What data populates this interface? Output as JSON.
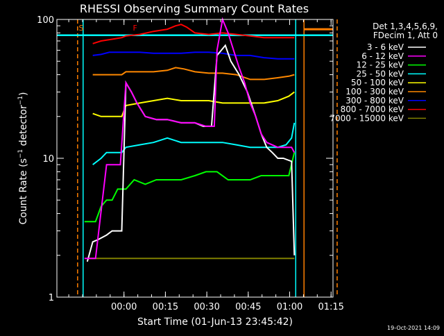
{
  "chart_data": {
    "type": "line",
    "title": "RHESSI Observing Summary Count Rates",
    "xlabel": "Start Time (01-Jun-13 23:45:42)",
    "ylabel": "Count Rate (s⁻¹ detector⁻¹)",
    "ylabel_main": "Count Rate (s",
    "ylabel_sup1": "−1",
    "ylabel_mid": " detector",
    "ylabel_sup2": "−1",
    "ylabel_end": ")",
    "y_scale": "log",
    "ylim": [
      1,
      100
    ],
    "xlim_minutes": [
      -10,
      90
    ],
    "x_ticks": [
      {
        "m": 14.3,
        "label": "00:00"
      },
      {
        "m": 29.3,
        "label": "00:15"
      },
      {
        "m": 44.3,
        "label": "00:30"
      },
      {
        "m": 59.3,
        "label": "00:45"
      },
      {
        "m": 74.3,
        "label": "01:00"
      },
      {
        "m": 89.3,
        "label": "01:15"
      }
    ],
    "y_ticks": [
      {
        "v": 1,
        "label": "1"
      },
      {
        "v": 10,
        "label": "10"
      },
      {
        "v": 100,
        "label": "100"
      }
    ],
    "legend_header": [
      "Det 1,3,4,5,6,9,",
      "FDecim 1, Att 0"
    ],
    "legend_placement": "top-right",
    "footer": "19-Oct-2021 14:09",
    "markers": [
      {
        "label": "S",
        "m": -1.2,
        "color": "#ff7f00"
      },
      {
        "label": "F",
        "m": 18.3,
        "color": "#ff0000"
      }
    ],
    "orange_dashed_lines_minutes": [
      -2.5,
      91.5
    ],
    "cyan_vertical_lines_minutes": [
      -0.5,
      76.5
    ],
    "orange_vertical_line_minutes": 79.5,
    "cyan_horizontal_level": 77,
    "orange_horizontal_level": 85,
    "series": [
      {
        "name": "3 - 6 keV",
        "color": "#ffffff",
        "points": [
          [
            1,
            1.8
          ],
          [
            3,
            2.5
          ],
          [
            5,
            2.6
          ],
          [
            8,
            2.8
          ],
          [
            10,
            3.0
          ],
          [
            12,
            3.0
          ],
          [
            13.5,
            3.0
          ],
          [
            15,
            35
          ],
          [
            17,
            30
          ],
          [
            19,
            25
          ],
          [
            22,
            20
          ],
          [
            26,
            19
          ],
          [
            30,
            19
          ],
          [
            35,
            18
          ],
          [
            40,
            18
          ],
          [
            43,
            17
          ],
          [
            46,
            17
          ],
          [
            48,
            55
          ],
          [
            51,
            65
          ],
          [
            53,
            50
          ],
          [
            56,
            40
          ],
          [
            59,
            30
          ],
          [
            62,
            20
          ],
          [
            64,
            15
          ],
          [
            66,
            12
          ],
          [
            68,
            11
          ],
          [
            70,
            10
          ],
          [
            72,
            10
          ],
          [
            75,
            9.5
          ],
          [
            76,
            2
          ]
        ]
      },
      {
        "name": "6 - 12 keV",
        "color": "#ff00ff",
        "points": [
          [
            0,
            1.9
          ],
          [
            4,
            1.9
          ],
          [
            8,
            9
          ],
          [
            12,
            9
          ],
          [
            13,
            9
          ],
          [
            15,
            35
          ],
          [
            17,
            30
          ],
          [
            19,
            25
          ],
          [
            22,
            20
          ],
          [
            26,
            19
          ],
          [
            30,
            19
          ],
          [
            35,
            18
          ],
          [
            40,
            18
          ],
          [
            44,
            17
          ],
          [
            47,
            17
          ],
          [
            48,
            60
          ],
          [
            50,
            100
          ],
          [
            52,
            80
          ],
          [
            54,
            60
          ],
          [
            56,
            45
          ],
          [
            58,
            35
          ],
          [
            60,
            25
          ],
          [
            62,
            20
          ],
          [
            64,
            15
          ],
          [
            66,
            13
          ],
          [
            70,
            12
          ],
          [
            73,
            12
          ],
          [
            75,
            12
          ],
          [
            76,
            11
          ]
        ]
      },
      {
        "name": "12 - 25 keV",
        "color": "#00ff00",
        "points": [
          [
            0,
            3.5
          ],
          [
            4,
            3.5
          ],
          [
            6,
            4.5
          ],
          [
            8,
            5
          ],
          [
            10,
            5
          ],
          [
            12,
            6
          ],
          [
            13.5,
            6
          ],
          [
            15,
            6
          ],
          [
            18,
            7
          ],
          [
            22,
            6.5
          ],
          [
            26,
            7
          ],
          [
            30,
            7
          ],
          [
            35,
            7
          ],
          [
            40,
            7.5
          ],
          [
            44,
            8
          ],
          [
            48,
            8
          ],
          [
            52,
            7
          ],
          [
            56,
            7
          ],
          [
            60,
            7
          ],
          [
            64,
            7.5
          ],
          [
            68,
            7.5
          ],
          [
            72,
            7.5
          ],
          [
            74,
            7.5
          ],
          [
            76,
            11
          ]
        ]
      },
      {
        "name": "25 - 50 keV",
        "color": "#00ffff",
        "points": [
          [
            3,
            9
          ],
          [
            6,
            10
          ],
          [
            8,
            11
          ],
          [
            10,
            11
          ],
          [
            12,
            11
          ],
          [
            13.5,
            11
          ],
          [
            15,
            12
          ],
          [
            20,
            12.5
          ],
          [
            25,
            13
          ],
          [
            30,
            14
          ],
          [
            35,
            13
          ],
          [
            40,
            13
          ],
          [
            45,
            13
          ],
          [
            50,
            13
          ],
          [
            55,
            12.5
          ],
          [
            60,
            12
          ],
          [
            65,
            12
          ],
          [
            70,
            12
          ],
          [
            73,
            12.5
          ],
          [
            75,
            14
          ],
          [
            76,
            18
          ]
        ]
      },
      {
        "name": "50 - 100 keV",
        "color": "#ffff00",
        "points": [
          [
            3,
            21
          ],
          [
            6,
            20
          ],
          [
            9,
            20
          ],
          [
            12,
            20
          ],
          [
            13.5,
            20
          ],
          [
            15,
            24
          ],
          [
            20,
            25
          ],
          [
            25,
            26
          ],
          [
            30,
            27
          ],
          [
            35,
            26
          ],
          [
            40,
            26
          ],
          [
            45,
            26
          ],
          [
            50,
            25
          ],
          [
            55,
            25
          ],
          [
            60,
            25
          ],
          [
            65,
            25
          ],
          [
            70,
            26
          ],
          [
            74,
            28
          ],
          [
            76,
            30
          ]
        ]
      },
      {
        "name": "100 - 300 keV",
        "color": "#ff8800",
        "points": [
          [
            3,
            40
          ],
          [
            6,
            40
          ],
          [
            10,
            40
          ],
          [
            13.5,
            40
          ],
          [
            15,
            42
          ],
          [
            20,
            42
          ],
          [
            25,
            42
          ],
          [
            30,
            43
          ],
          [
            33,
            45
          ],
          [
            36,
            44
          ],
          [
            40,
            42
          ],
          [
            45,
            41
          ],
          [
            50,
            41
          ],
          [
            55,
            40
          ],
          [
            60,
            37
          ],
          [
            65,
            37
          ],
          [
            70,
            38
          ],
          [
            74,
            39
          ],
          [
            76,
            40
          ]
        ]
      },
      {
        "name": "300 - 800 keV",
        "color": "#0000ff",
        "points": [
          [
            3,
            55
          ],
          [
            6,
            56
          ],
          [
            9,
            58
          ],
          [
            12,
            58
          ],
          [
            13.5,
            58
          ],
          [
            15,
            58
          ],
          [
            20,
            58
          ],
          [
            25,
            57
          ],
          [
            30,
            57
          ],
          [
            35,
            57
          ],
          [
            40,
            58
          ],
          [
            45,
            58
          ],
          [
            50,
            57
          ],
          [
            55,
            55
          ],
          [
            60,
            55
          ],
          [
            65,
            53
          ],
          [
            70,
            52
          ],
          [
            74,
            52
          ],
          [
            76,
            52
          ]
        ]
      },
      {
        "name": "800 - 7000 keV",
        "color": "#ff0000",
        "points": [
          [
            3,
            67
          ],
          [
            6,
            70
          ],
          [
            10,
            72
          ],
          [
            13.5,
            74
          ],
          [
            15,
            76
          ],
          [
            20,
            78
          ],
          [
            25,
            82
          ],
          [
            30,
            85
          ],
          [
            33,
            90
          ],
          [
            35,
            92
          ],
          [
            37,
            88
          ],
          [
            40,
            80
          ],
          [
            45,
            78
          ],
          [
            50,
            80
          ],
          [
            55,
            78
          ],
          [
            60,
            76
          ],
          [
            65,
            74
          ],
          [
            70,
            74
          ],
          [
            74,
            74
          ],
          [
            76,
            74
          ]
        ]
      },
      {
        "name": "7000 - 15000 keV",
        "color": "#808000",
        "points": [
          [
            1,
            1.9
          ],
          [
            6,
            1.9
          ],
          [
            10,
            1.9
          ],
          [
            13.5,
            1.9
          ],
          [
            15,
            1.9
          ],
          [
            25,
            1.9
          ],
          [
            35,
            1.9
          ],
          [
            45,
            1.9
          ],
          [
            55,
            1.9
          ],
          [
            65,
            1.9
          ],
          [
            75,
            1.9
          ],
          [
            76,
            1.9
          ]
        ]
      }
    ]
  }
}
